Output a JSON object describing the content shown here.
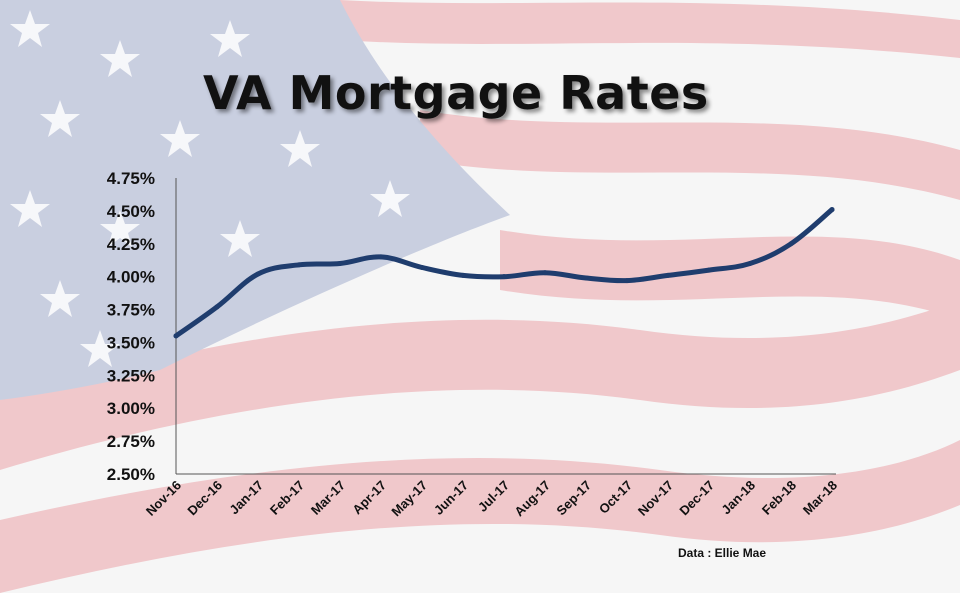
{
  "slide": {
    "title": "VA Mortgage Rates",
    "source": "Data : Ellie  Mae"
  },
  "colors": {
    "line": "#1f3d6e",
    "axis": "#555555",
    "flag_blue": "#c9cfe0",
    "flag_red": "#f0c8cb",
    "flag_white": "#f6f6f6"
  },
  "chart_data": {
    "type": "line",
    "title": "VA Mortgage Rates",
    "xlabel": "",
    "ylabel": "",
    "categories": [
      "Nov-16",
      "Dec-16",
      "Jan-17",
      "Feb-17",
      "Mar-17",
      "Apr-17",
      "May-17",
      "Jun-17",
      "Jul-17",
      "Aug-17",
      "Sep-17",
      "Oct-17",
      "Nov-17",
      "Dec-17",
      "Jan-18",
      "Feb-18",
      "Mar-18"
    ],
    "values": [
      3.55,
      3.77,
      4.02,
      4.09,
      4.1,
      4.15,
      4.07,
      4.01,
      4.0,
      4.03,
      3.99,
      3.97,
      4.01,
      4.05,
      4.1,
      4.25,
      4.51
    ],
    "ylim": [
      2.5,
      4.75
    ],
    "yticks": [
      2.5,
      2.75,
      3.0,
      3.25,
      3.5,
      3.75,
      4.0,
      4.25,
      4.5,
      4.75
    ],
    "ytick_labels": [
      "2.50%",
      "2.75%",
      "3.00%",
      "3.25%",
      "3.50%",
      "3.75%",
      "4.00%",
      "4.25%",
      "4.50%",
      "4.75%"
    ],
    "grid": false,
    "legend": "none"
  }
}
